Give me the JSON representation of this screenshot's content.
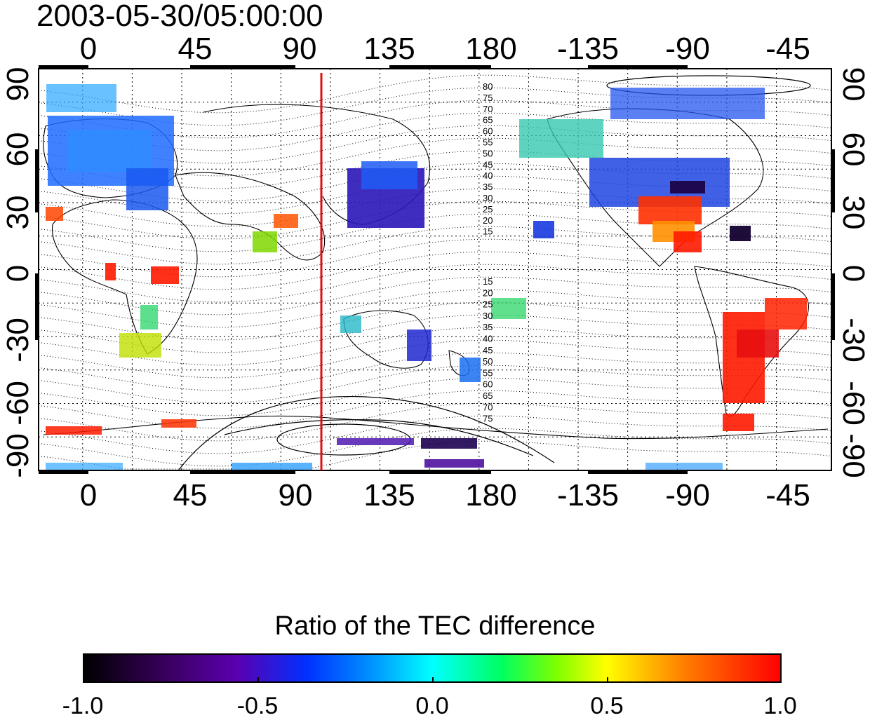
{
  "timestamp": "2003-05-30/05:00:00",
  "colorbar": {
    "title": "Ratio of the TEC difference",
    "ticks": [
      "-1.0",
      "-0.5",
      "0.0",
      "0.5",
      "1.0"
    ],
    "range": [
      -1.0,
      1.0
    ],
    "colormap": [
      "#000000",
      "#5a00b0",
      "#0030ff",
      "#00ffff",
      "#00ff60",
      "#ffff00",
      "#ff8000",
      "#ff0000"
    ]
  },
  "map": {
    "lon_ticks_top": [
      "0",
      "45",
      "90",
      "135",
      "180",
      "-135",
      "-90",
      "-45"
    ],
    "lon_ticks_bottom": [
      "0",
      "45",
      "90",
      "135",
      "180",
      "-135",
      "-90",
      "-45"
    ],
    "lat_ticks_left": [
      "90",
      "60",
      "30",
      "0",
      "-30",
      "-60",
      "-90"
    ],
    "lat_ticks_right": [
      "90",
      "60",
      "30",
      "0",
      "-30",
      "-60",
      "-90"
    ],
    "lon_range": [
      -20,
      340
    ],
    "lat_range": [
      -90,
      90
    ],
    "meridian_longitude": 105,
    "meridian_color": "#dd1111",
    "contour_labels_north": [
      "80",
      "75",
      "70",
      "65",
      "60",
      "55",
      "50",
      "45",
      "40",
      "35",
      "30",
      "25",
      "20",
      "15"
    ],
    "contour_labels_south": [
      "15",
      "20",
      "25",
      "30",
      "35",
      "40",
      "45",
      "50",
      "55",
      "60",
      "65",
      "70",
      "75"
    ]
  }
}
